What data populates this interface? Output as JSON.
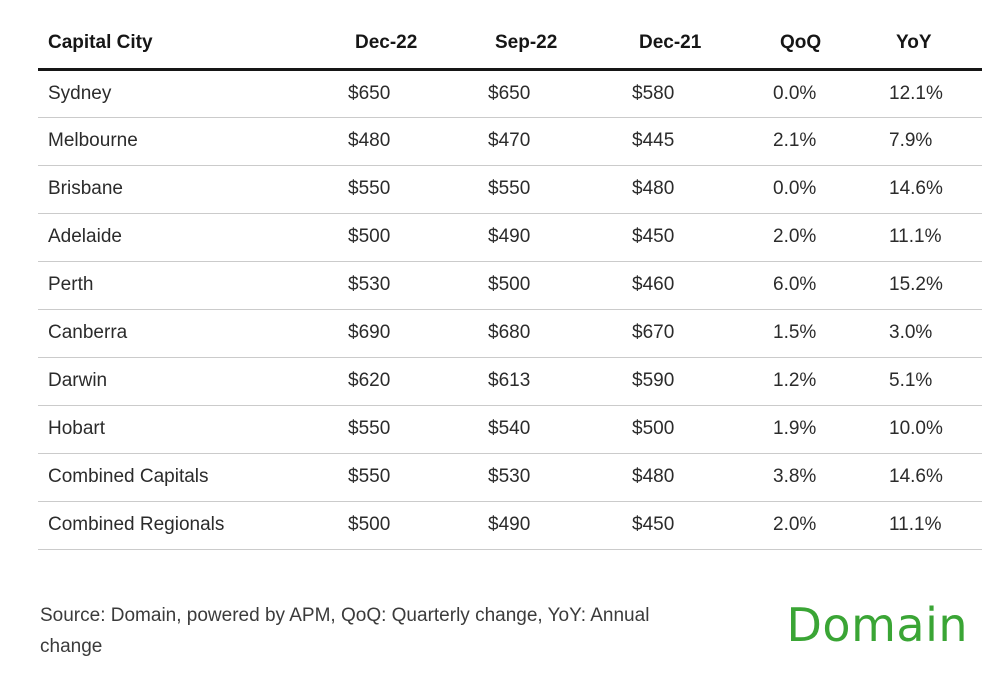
{
  "chart_data": {
    "type": "table",
    "columns": [
      "Capital City",
      "Dec-22",
      "Sep-22",
      "Dec-21",
      "QoQ",
      "YoY"
    ],
    "rows": [
      [
        "Sydney",
        "$650",
        "$650",
        "$580",
        "0.0%",
        "12.1%"
      ],
      [
        "Melbourne",
        "$480",
        "$470",
        "$445",
        "2.1%",
        "7.9%"
      ],
      [
        "Brisbane",
        "$550",
        "$550",
        "$480",
        "0.0%",
        "14.6%"
      ],
      [
        "Adelaide",
        "$500",
        "$490",
        "$450",
        "2.0%",
        "11.1%"
      ],
      [
        "Perth",
        "$530",
        "$500",
        "$460",
        "6.0%",
        "15.2%"
      ],
      [
        "Canberra",
        "$690",
        "$680",
        "$670",
        "1.5%",
        "3.0%"
      ],
      [
        "Darwin",
        "$620",
        "$613",
        "$590",
        "1.2%",
        "5.1%"
      ],
      [
        "Hobart",
        "$550",
        "$540",
        "$500",
        "1.9%",
        "10.0%"
      ],
      [
        "Combined Capitals",
        "$550",
        "$530",
        "$480",
        "3.8%",
        "14.6%"
      ],
      [
        "Combined Regionals",
        "$500",
        "$490",
        "$450",
        "2.0%",
        "11.1%"
      ]
    ],
    "notes": "Source: Domain, powered by APM, QoQ: Quarterly change, YoY: Annual change"
  },
  "footer": {
    "source_line1": "Source: Domain, powered by APM, QoQ: Quarterly change, YoY: Annual",
    "source_line2": "change",
    "logo_text": "Domain"
  },
  "colors": {
    "logo_green": "#3aa535",
    "header_text": "#161616",
    "header_rule": "#161616",
    "body_text": "#2b2b2b",
    "row_rule": "#cbcbcb",
    "footer_text": "#3b3b3b"
  }
}
